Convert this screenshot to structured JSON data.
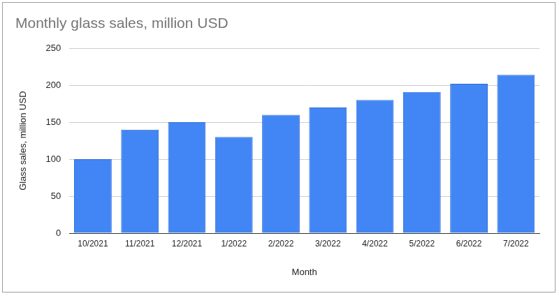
{
  "chart_data": {
    "type": "bar",
    "title": "Monthly glass sales, million USD",
    "xlabel": "Month",
    "ylabel": "Glass sales, million USD",
    "categories": [
      "10/2021",
      "11/2021",
      "12/2021",
      "1/2022",
      "2/2022",
      "3/2022",
      "4/2022",
      "5/2022",
      "6/2022",
      "7/2022"
    ],
    "values": [
      100,
      140,
      150,
      130,
      160,
      170,
      180,
      191,
      202,
      214
    ],
    "color": "#4285f4",
    "ylim": [
      0,
      250
    ],
    "yticks": [
      0,
      50,
      100,
      150,
      200,
      250
    ],
    "grid": true
  }
}
